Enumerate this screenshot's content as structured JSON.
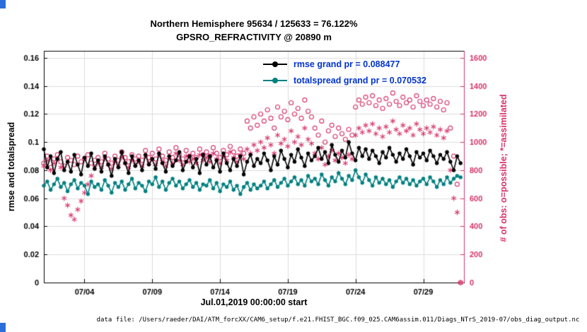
{
  "figure": {
    "footer": "data file: /Users/raeder/DAI/ATM_forcXX/CAM6_setup/f.e21.FHIST_BGC.f09_025.CAM6assim.011/Diags_NTrS_2019-07/obs_diag_output.nc"
  },
  "chart_data": {
    "type": "line",
    "title": "Northern Hemisphere 95634 / 125633 = 76.122%",
    "subtitle": "GPSRO_REFRACTIVITY @ 20890 m",
    "xlabel": "Jul.01,2019 00:00:00 start",
    "ylabel_left": "rmse and totalspread",
    "ylabel_right": "# of obs: o=possible; *=assimilated",
    "grid": true,
    "legend_position": "upper-center-right",
    "colors": {
      "grid": "#dcdcdc",
      "axis": "#000000",
      "right_axis": "#D6336C",
      "legend_text": "#0033CC"
    },
    "x_axis": {
      "lim": [
        1,
        32
      ],
      "ticks": [
        4,
        9,
        14,
        19,
        24,
        29
      ],
      "labels": [
        "07/04",
        "07/09",
        "07/14",
        "07/19",
        "07/24",
        "07/29"
      ]
    },
    "y_left": {
      "lim": [
        0,
        0.165
      ],
      "ticks": [
        0,
        0.02,
        0.04,
        0.06,
        0.08,
        0.1,
        0.12,
        0.14,
        0.16
      ],
      "labels": [
        "0",
        "0.02",
        "0.04",
        "0.06",
        "0.08",
        "0.1",
        "0.12",
        "0.14",
        "0.16"
      ]
    },
    "y_right": {
      "lim": [
        0,
        1650
      ],
      "ticks": [
        0,
        200,
        400,
        600,
        800,
        1000,
        1200,
        1400,
        1600
      ],
      "labels": [
        "0",
        "200",
        "400",
        "600",
        "800",
        "1000",
        "1200",
        "1400",
        "1600"
      ]
    },
    "x_start": 1.0,
    "x_step": 0.25,
    "series": [
      {
        "name": "rmse grand pr = 0.088477",
        "type": "line",
        "axis": "left",
        "color": "#000000",
        "marker": "dot",
        "values": [
          0.095,
          0.082,
          0.09,
          0.078,
          0.088,
          0.093,
          0.08,
          0.086,
          0.079,
          0.091,
          0.084,
          0.077,
          0.089,
          0.083,
          0.092,
          0.081,
          0.087,
          0.079,
          0.09,
          0.084,
          0.076,
          0.088,
          0.082,
          0.093,
          0.085,
          0.078,
          0.09,
          0.083,
          0.087,
          0.08,
          0.091,
          0.084,
          0.088,
          0.081,
          0.092,
          0.085,
          0.079,
          0.09,
          0.083,
          0.087,
          0.093,
          0.08,
          0.086,
          0.09,
          0.082,
          0.088,
          0.078,
          0.091,
          0.084,
          0.09,
          0.082,
          0.087,
          0.079,
          0.092,
          0.085,
          0.08,
          0.088,
          0.083,
          0.09,
          0.077,
          0.086,
          0.091,
          0.083,
          0.088,
          0.085,
          0.092,
          0.087,
          0.08,
          0.09,
          0.084,
          0.094,
          0.088,
          0.082,
          0.091,
          0.086,
          0.095,
          0.089,
          0.083,
          0.092,
          0.087,
          0.09,
          0.096,
          0.088,
          0.093,
          0.085,
          0.098,
          0.091,
          0.086,
          0.094,
          0.089,
          0.1,
          0.092,
          0.087,
          0.096,
          0.09,
          0.095,
          0.088,
          0.094,
          0.09,
          0.085,
          0.093,
          0.089,
          0.096,
          0.091,
          0.086,
          0.092,
          0.088,
          0.095,
          0.09,
          0.084,
          0.093,
          0.089,
          0.092,
          0.087,
          0.094,
          0.09,
          0.085,
          0.091,
          0.088,
          0.093,
          0.086,
          0.08,
          0.09,
          0.085
        ]
      },
      {
        "name": "totalspread grand pr = 0.070532",
        "type": "line",
        "axis": "left",
        "color": "#008080",
        "marker": "dot",
        "values": [
          0.069,
          0.072,
          0.066,
          0.07,
          0.074,
          0.068,
          0.071,
          0.065,
          0.07,
          0.073,
          0.067,
          0.071,
          0.069,
          0.063,
          0.072,
          0.068,
          0.07,
          0.066,
          0.073,
          0.069,
          0.064,
          0.071,
          0.068,
          0.072,
          0.066,
          0.07,
          0.074,
          0.067,
          0.071,
          0.069,
          0.065,
          0.072,
          0.07,
          0.075,
          0.068,
          0.072,
          0.066,
          0.071,
          0.074,
          0.069,
          0.072,
          0.067,
          0.07,
          0.073,
          0.068,
          0.071,
          0.066,
          0.07,
          0.069,
          0.073,
          0.067,
          0.071,
          0.065,
          0.07,
          0.068,
          0.072,
          0.066,
          0.069,
          0.063,
          0.068,
          0.071,
          0.066,
          0.07,
          0.067,
          0.069,
          0.072,
          0.067,
          0.07,
          0.073,
          0.068,
          0.071,
          0.074,
          0.069,
          0.072,
          0.075,
          0.07,
          0.073,
          0.069,
          0.076,
          0.072,
          0.074,
          0.07,
          0.077,
          0.073,
          0.069,
          0.075,
          0.072,
          0.078,
          0.074,
          0.07,
          0.076,
          0.073,
          0.08,
          0.075,
          0.071,
          0.077,
          0.073,
          0.069,
          0.075,
          0.071,
          0.074,
          0.07,
          0.073,
          0.068,
          0.072,
          0.075,
          0.071,
          0.074,
          0.07,
          0.073,
          0.069,
          0.072,
          0.074,
          0.07,
          0.075,
          0.072,
          0.068,
          0.073,
          0.07,
          0.075,
          0.071,
          0.074,
          0.076,
          0.075
        ]
      },
      {
        "name": "possible",
        "type": "scatter",
        "axis": "right",
        "color": "#D6336C",
        "marker": "circle",
        "values": [
          850,
          900,
          820,
          880,
          910,
          860,
          830,
          890,
          870,
          840,
          900,
          860,
          880,
          910,
          850,
          870,
          890,
          860,
          920,
          880,
          850,
          900,
          870,
          930,
          890,
          860,
          910,
          880,
          900,
          870,
          940,
          890,
          920,
          880,
          950,
          900,
          870,
          930,
          890,
          960,
          910,
          880,
          940,
          900,
          920,
          890,
          950,
          910,
          930,
          900,
          960,
          920,
          890,
          940,
          910,
          970,
          930,
          900,
          950,
          920,
          1150,
          1100,
          1180,
          1120,
          1200,
          1150,
          1230,
          1170,
          1100,
          1250,
          1180,
          1220,
          1160,
          1280,
          1200,
          1240,
          1170,
          1300,
          1220,
          1180,
          1100,
          1050,
          1150,
          1000,
          1080,
          1120,
          1040,
          1100,
          1060,
          1020,
          1090,
          1050,
          1250,
          1300,
          1270,
          1320,
          1280,
          1330,
          1260,
          1300,
          1240,
          1310,
          1270,
          1350,
          1290,
          1260,
          1320,
          1280,
          1300,
          1250,
          1330,
          1290,
          1260,
          1300,
          1270,
          1310,
          1250,
          1290,
          1230,
          1280,
          1100,
          900,
          700,
          0
        ]
      },
      {
        "name": "assimilated",
        "type": "scatter",
        "axis": "right",
        "color": "#D6336C",
        "marker": "asterisk",
        "values": [
          830,
          870,
          800,
          850,
          880,
          820,
          600,
          550,
          480,
          450,
          520,
          580,
          640,
          700,
          760,
          820,
          850,
          820,
          880,
          840,
          810,
          860,
          830,
          890,
          850,
          820,
          870,
          840,
          860,
          830,
          900,
          850,
          880,
          840,
          910,
          860,
          830,
          890,
          850,
          920,
          870,
          840,
          900,
          860,
          880,
          850,
          910,
          870,
          890,
          860,
          920,
          880,
          850,
          900,
          870,
          930,
          890,
          860,
          910,
          880,
          950,
          920,
          980,
          940,
          1000,
          960,
          1030,
          980,
          920,
          1050,
          990,
          1020,
          970,
          1080,
          1000,
          1040,
          980,
          1100,
          1020,
          990,
          920,
          880,
          960,
          840,
          900,
          940,
          870,
          920,
          890,
          850,
          910,
          880,
          1050,
          1100,
          1070,
          1120,
          1080,
          1130,
          1060,
          1100,
          1040,
          1110,
          1070,
          1150,
          1090,
          1060,
          1120,
          1080,
          1100,
          1050,
          1130,
          1090,
          1060,
          1100,
          1070,
          1110,
          1050,
          1090,
          1030,
          1080,
          800,
          600,
          500,
          0
        ]
      }
    ]
  }
}
